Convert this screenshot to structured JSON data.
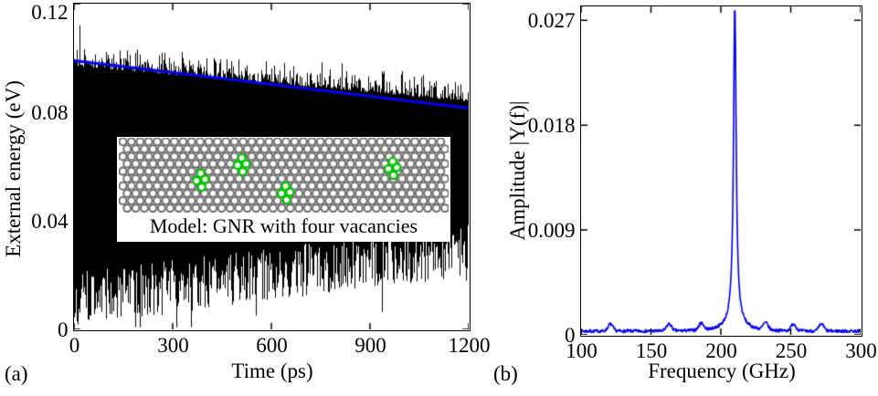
{
  "figure": {
    "background": "#ffffff",
    "axis_color": "#000000",
    "panels": [
      {
        "tag": "(a)"
      },
      {
        "tag": "(b)"
      }
    ]
  },
  "chart_data": [
    {
      "type": "line",
      "panel": "a",
      "xlabel": "Time (ps)",
      "ylabel": "External energy (eV)",
      "xlim": [
        0,
        1200
      ],
      "ylim": [
        0,
        0.12
      ],
      "xticks": [
        "0",
        "300",
        "600",
        "900",
        "1200"
      ],
      "xtick_values": [
        0,
        300,
        600,
        900,
        1200
      ],
      "yticks": [
        "0",
        "0.04",
        "0.08",
        "0.12"
      ],
      "ytick_values": [
        0,
        0.04,
        0.08,
        0.12
      ],
      "grid": false,
      "series": [
        {
          "name": "external energy signal",
          "style": "dense noisy oscillation (solid black band)",
          "color": "#000000",
          "upper_envelope": {
            "x": [
              0,
              1200
            ],
            "y": [
              0.1005,
              0.0875
            ]
          },
          "lower_envelope": {
            "x": [
              0,
              1200
            ],
            "y": [
              0.011,
              0.0295
            ]
          },
          "max_spike": 0.112
        },
        {
          "name": "linear fit",
          "style": "straight line",
          "color": "#0000ee",
          "x": [
            0,
            1200
          ],
          "y": [
            0.099,
            0.0815
          ]
        }
      ],
      "inset": {
        "caption": "Model: GNR with four vacancies",
        "lattice_color": "#747474",
        "vacancy_color": "#00c400",
        "vacancy_count": 4,
        "vacancy_positions": [
          {
            "x": 85,
            "y": 47
          },
          {
            "x": 130,
            "y": 30
          },
          {
            "x": 178,
            "y": 61
          },
          {
            "x": 295,
            "y": 34
          }
        ]
      }
    },
    {
      "type": "line",
      "panel": "b",
      "xlabel": "Frequency (GHz)",
      "ylabel": "Amplitude |Y(f)|",
      "xlim": [
        100,
        300
      ],
      "ylim": [
        0,
        0.0282
      ],
      "xticks": [
        "100",
        "150",
        "200",
        "250",
        "300"
      ],
      "xtick_values": [
        100,
        150,
        200,
        250,
        300
      ],
      "yticks": [
        "0",
        "0.009",
        "0.018",
        "0.027"
      ],
      "ytick_values": [
        0,
        0.009,
        0.018,
        0.027
      ],
      "grid": false,
      "series": [
        {
          "name": "FFT amplitude spectrum",
          "color": "#0000ee",
          "peak_frequency_GHz": 210,
          "peak_amplitude": 0.0276,
          "peak_half_width_GHz": 1.1,
          "pedestal_amplitude": 0.0012,
          "baseline": 0.0003,
          "minor_bumps_GHz": [
            121,
            163,
            186,
            232,
            252,
            272
          ]
        }
      ]
    }
  ]
}
